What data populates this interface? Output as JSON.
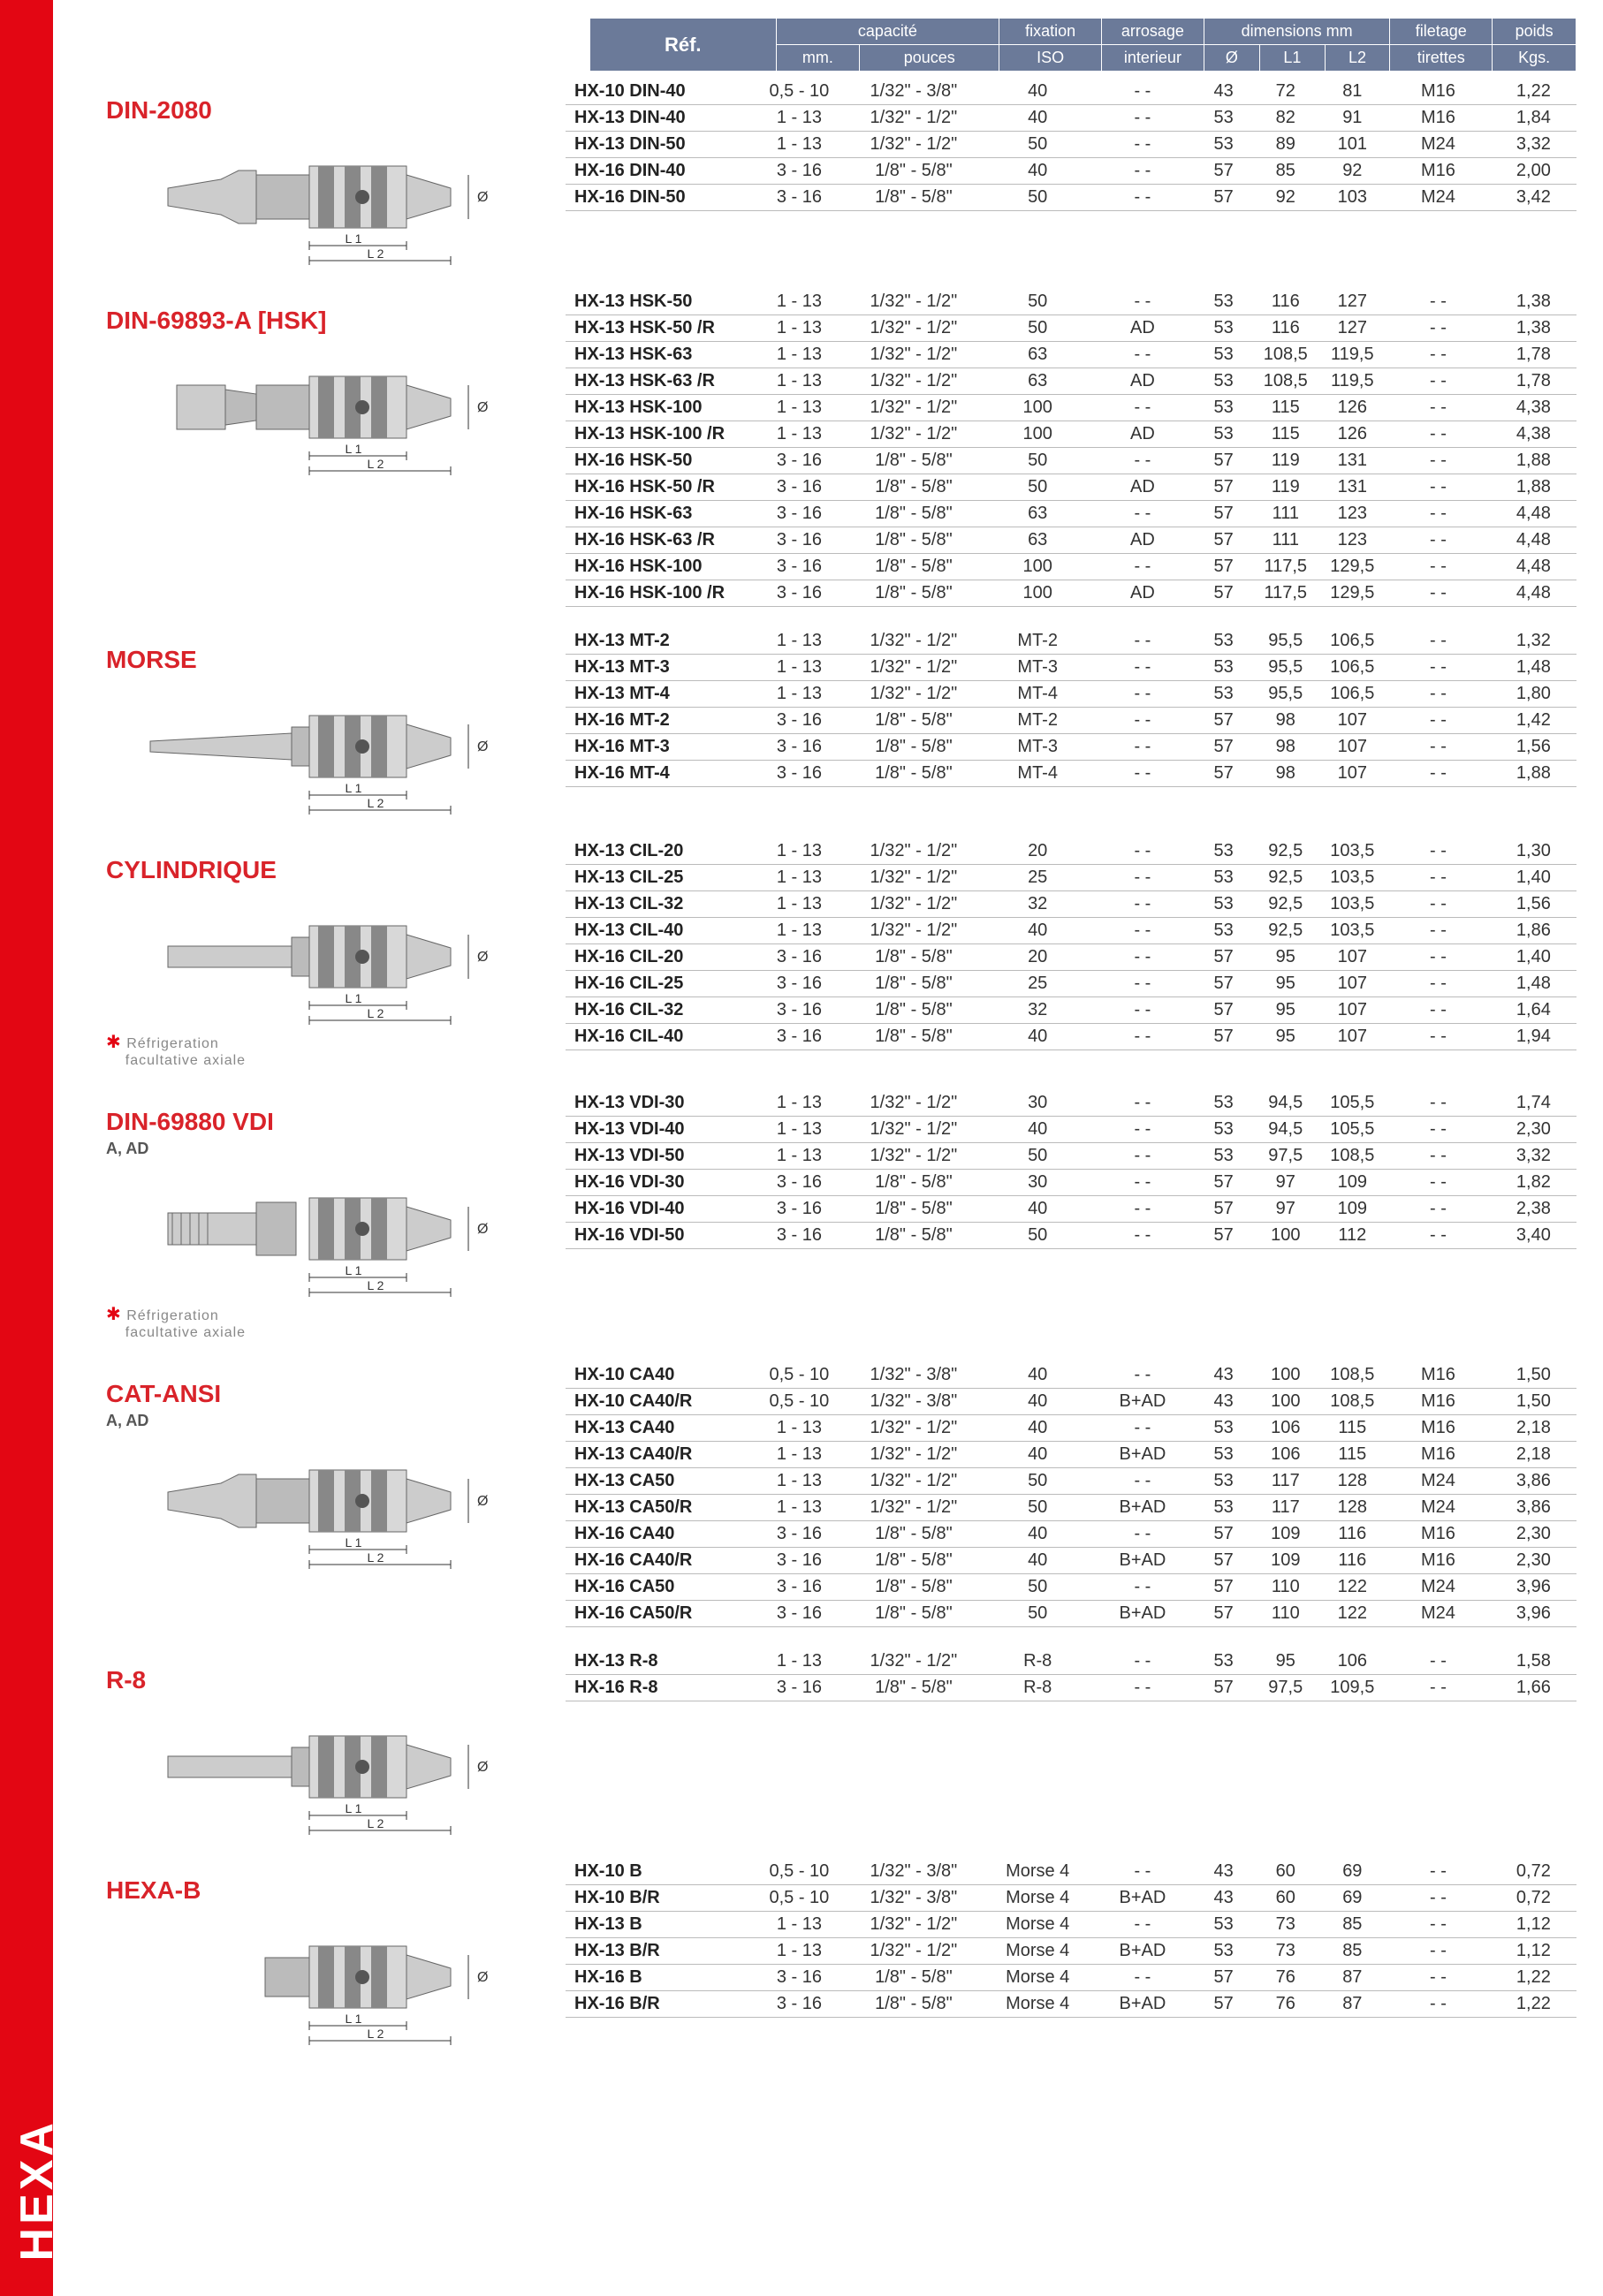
{
  "brand_vertical": "HEXA",
  "colors": {
    "accent": "#e30613",
    "header_bg": "#6b7a99",
    "title": "#d9232a"
  },
  "headers": {
    "ref": "Réf.",
    "cap": "capacité",
    "cap_mm": "mm.",
    "cap_in": "pouces",
    "iso": "fixation",
    "iso_sub": "ISO",
    "arr": "arrosage",
    "arr_sub": "interieur",
    "dim": "dimensions mm",
    "dim_d": "Ø",
    "dim_l1": "L1",
    "dim_l2": "L2",
    "fil": "filetage",
    "fil_sub": "tirettes",
    "kg": "poids",
    "kg_sub": "Kgs."
  },
  "sections": [
    {
      "title": "DIN-2080",
      "diagram": "taper",
      "rows": [
        {
          "ref": "HX-10 DIN-40",
          "mm": "0,5 - 10",
          "in": "1/32\" - 3/8\"",
          "iso": "40",
          "arr": "- -",
          "d": "43",
          "l1": "72",
          "l2": "81",
          "fil": "M16",
          "kg": "1,22",
          "sep": false
        },
        {
          "ref": "HX-13 DIN-40",
          "mm": "1 - 13",
          "in": "1/32\" - 1/2\"",
          "iso": "40",
          "arr": "- -",
          "d": "53",
          "l1": "82",
          "l2": "91",
          "fil": "M16",
          "kg": "1,84",
          "sep": true
        },
        {
          "ref": "HX-13 DIN-50",
          "mm": "1 - 13",
          "in": "1/32\" - 1/2\"",
          "iso": "50",
          "arr": "- -",
          "d": "53",
          "l1": "89",
          "l2": "101",
          "fil": "M24",
          "kg": "3,32",
          "sep": false
        },
        {
          "ref": "HX-16 DIN-40",
          "mm": "3 - 16",
          "in": "1/8\" - 5/8\"",
          "iso": "40",
          "arr": "- -",
          "d": "57",
          "l1": "85",
          "l2": "92",
          "fil": "M16",
          "kg": "2,00",
          "sep": true
        },
        {
          "ref": "HX-16 DIN-50",
          "mm": "3 - 16",
          "in": "1/8\" - 5/8\"",
          "iso": "50",
          "arr": "- -",
          "d": "57",
          "l1": "92",
          "l2": "103",
          "fil": "M24",
          "kg": "3,42",
          "sep": false
        }
      ]
    },
    {
      "title": "DIN-69893-A [HSK]",
      "diagram": "hsk",
      "rows": [
        {
          "ref": "HX-13 HSK-50",
          "mm": "1 - 13",
          "in": "1/32\" - 1/2\"",
          "iso": "50",
          "arr": "- -",
          "d": "53",
          "l1": "116",
          "l2": "127",
          "fil": "- -",
          "kg": "1,38",
          "sep": false
        },
        {
          "ref": "HX-13 HSK-50 /R",
          "mm": "1 - 13",
          "in": "1/32\" - 1/2\"",
          "iso": "50",
          "arr": "AD",
          "d": "53",
          "l1": "116",
          "l2": "127",
          "fil": "- -",
          "kg": "1,38",
          "sep": false
        },
        {
          "ref": "HX-13 HSK-63",
          "mm": "1 - 13",
          "in": "1/32\" - 1/2\"",
          "iso": "63",
          "arr": "- -",
          "d": "53",
          "l1": "108,5",
          "l2": "119,5",
          "fil": "- -",
          "kg": "1,78",
          "sep": false
        },
        {
          "ref": "HX-13 HSK-63 /R",
          "mm": "1 - 13",
          "in": "1/32\" - 1/2\"",
          "iso": "63",
          "arr": "AD",
          "d": "53",
          "l1": "108,5",
          "l2": "119,5",
          "fil": "- -",
          "kg": "1,78",
          "sep": false
        },
        {
          "ref": "HX-13 HSK-100",
          "mm": "1 - 13",
          "in": "1/32\" - 1/2\"",
          "iso": "100",
          "arr": "- -",
          "d": "53",
          "l1": "115",
          "l2": "126",
          "fil": "- -",
          "kg": "4,38",
          "sep": false
        },
        {
          "ref": "HX-13 HSK-100 /R",
          "mm": "1 - 13",
          "in": "1/32\" - 1/2\"",
          "iso": "100",
          "arr": "AD",
          "d": "53",
          "l1": "115",
          "l2": "126",
          "fil": "- -",
          "kg": "4,38",
          "sep": false
        },
        {
          "ref": "HX-16 HSK-50",
          "mm": "3 - 16",
          "in": "1/8\" - 5/8\"",
          "iso": "50",
          "arr": "- -",
          "d": "57",
          "l1": "119",
          "l2": "131",
          "fil": "- -",
          "kg": "1,88",
          "sep": true
        },
        {
          "ref": "HX-16 HSK-50 /R",
          "mm": "3 - 16",
          "in": "1/8\" - 5/8\"",
          "iso": "50",
          "arr": "AD",
          "d": "57",
          "l1": "119",
          "l2": "131",
          "fil": "- -",
          "kg": "1,88",
          "sep": false
        },
        {
          "ref": "HX-16 HSK-63",
          "mm": "3 - 16",
          "in": "1/8\" - 5/8\"",
          "iso": "63",
          "arr": "- -",
          "d": "57",
          "l1": "111",
          "l2": "123",
          "fil": "- -",
          "kg": "4,48",
          "sep": false
        },
        {
          "ref": "HX-16 HSK-63 /R",
          "mm": "3 - 16",
          "in": "1/8\" - 5/8\"",
          "iso": "63",
          "arr": "AD",
          "d": "57",
          "l1": "111",
          "l2": "123",
          "fil": "- -",
          "kg": "4,48",
          "sep": false
        },
        {
          "ref": "HX-16 HSK-100",
          "mm": "3 - 16",
          "in": "1/8\" - 5/8\"",
          "iso": "100",
          "arr": "- -",
          "d": "57",
          "l1": "117,5",
          "l2": "129,5",
          "fil": "- -",
          "kg": "4,48",
          "sep": false
        },
        {
          "ref": "HX-16 HSK-100 /R",
          "mm": "3 - 16",
          "in": "1/8\" - 5/8\"",
          "iso": "100",
          "arr": "AD",
          "d": "57",
          "l1": "117,5",
          "l2": "129,5",
          "fil": "- -",
          "kg": "4,48",
          "sep": false
        }
      ]
    },
    {
      "title": "MORSE",
      "diagram": "morse",
      "rows": [
        {
          "ref": "HX-13 MT-2",
          "mm": "1 - 13",
          "in": "1/32\" - 1/2\"",
          "iso": "MT-2",
          "arr": "- -",
          "d": "53",
          "l1": "95,5",
          "l2": "106,5",
          "fil": "- -",
          "kg": "1,32",
          "sep": false
        },
        {
          "ref": "HX-13 MT-3",
          "mm": "1 - 13",
          "in": "1/32\" - 1/2\"",
          "iso": "MT-3",
          "arr": "- -",
          "d": "53",
          "l1": "95,5",
          "l2": "106,5",
          "fil": "- -",
          "kg": "1,48",
          "sep": false
        },
        {
          "ref": "HX-13 MT-4",
          "mm": "1 - 13",
          "in": "1/32\" - 1/2\"",
          "iso": "MT-4",
          "arr": "- -",
          "d": "53",
          "l1": "95,5",
          "l2": "106,5",
          "fil": "- -",
          "kg": "1,80",
          "sep": false
        },
        {
          "ref": "HX-16 MT-2",
          "mm": "3 - 16",
          "in": "1/8\" - 5/8\"",
          "iso": "MT-2",
          "arr": "- -",
          "d": "57",
          "l1": "98",
          "l2": "107",
          "fil": "- -",
          "kg": "1,42",
          "sep": true
        },
        {
          "ref": "HX-16 MT-3",
          "mm": "3 - 16",
          "in": "1/8\" - 5/8\"",
          "iso": "MT-3",
          "arr": "- -",
          "d": "57",
          "l1": "98",
          "l2": "107",
          "fil": "- -",
          "kg": "1,56",
          "sep": false
        },
        {
          "ref": "HX-16 MT-4",
          "mm": "3 - 16",
          "in": "1/8\" - 5/8\"",
          "iso": "MT-4",
          "arr": "- -",
          "d": "57",
          "l1": "98",
          "l2": "107",
          "fil": "- -",
          "kg": "1,88",
          "sep": false
        }
      ]
    },
    {
      "title": "CYLINDRIQUE",
      "diagram": "cyl",
      "refrig": true,
      "rows": [
        {
          "ref": "HX-13 CIL-20",
          "mm": "1 - 13",
          "in": "1/32\" - 1/2\"",
          "iso": "20",
          "arr": "- -",
          "d": "53",
          "l1": "92,5",
          "l2": "103,5",
          "fil": "- -",
          "kg": "1,30",
          "sep": false
        },
        {
          "ref": "HX-13 CIL-25",
          "mm": "1 - 13",
          "in": "1/32\" - 1/2\"",
          "iso": "25",
          "arr": "- -",
          "d": "53",
          "l1": "92,5",
          "l2": "103,5",
          "fil": "- -",
          "kg": "1,40",
          "sep": false
        },
        {
          "ref": "HX-13 CIL-32",
          "mm": "1 - 13",
          "in": "1/32\" - 1/2\"",
          "iso": "32",
          "arr": "- -",
          "d": "53",
          "l1": "92,5",
          "l2": "103,5",
          "fil": "- -",
          "kg": "1,56",
          "sep": false
        },
        {
          "ref": "HX-13 CIL-40",
          "mm": "1 - 13",
          "in": "1/32\" - 1/2\"",
          "iso": "40",
          "arr": "- -",
          "d": "53",
          "l1": "92,5",
          "l2": "103,5",
          "fil": "- -",
          "kg": "1,86",
          "sep": false
        },
        {
          "ref": "HX-16 CIL-20",
          "mm": "3 - 16",
          "in": "1/8\" - 5/8\"",
          "iso": "20",
          "arr": "- -",
          "d": "57",
          "l1": "95",
          "l2": "107",
          "fil": "- -",
          "kg": "1,40",
          "sep": true
        },
        {
          "ref": "HX-16 CIL-25",
          "mm": "3 - 16",
          "in": "1/8\" - 5/8\"",
          "iso": "25",
          "arr": "- -",
          "d": "57",
          "l1": "95",
          "l2": "107",
          "fil": "- -",
          "kg": "1,48",
          "sep": false
        },
        {
          "ref": "HX-16 CIL-32",
          "mm": "3 - 16",
          "in": "1/8\" - 5/8\"",
          "iso": "32",
          "arr": "- -",
          "d": "57",
          "l1": "95",
          "l2": "107",
          "fil": "- -",
          "kg": "1,64",
          "sep": false
        },
        {
          "ref": "HX-16 CIL-40",
          "mm": "3 - 16",
          "in": "1/8\" - 5/8\"",
          "iso": "40",
          "arr": "- -",
          "d": "57",
          "l1": "95",
          "l2": "107",
          "fil": "- -",
          "kg": "1,94",
          "sep": false
        }
      ]
    },
    {
      "title": "DIN-69880 VDI",
      "sub": "A, AD",
      "diagram": "vdi",
      "refrig": true,
      "rows": [
        {
          "ref": "HX-13 VDI-30",
          "mm": "1 - 13",
          "in": "1/32\" - 1/2\"",
          "iso": "30",
          "arr": "- -",
          "d": "53",
          "l1": "94,5",
          "l2": "105,5",
          "fil": "- -",
          "kg": "1,74",
          "sep": false
        },
        {
          "ref": "HX-13 VDI-40",
          "mm": "1 - 13",
          "in": "1/32\" - 1/2\"",
          "iso": "40",
          "arr": "- -",
          "d": "53",
          "l1": "94,5",
          "l2": "105,5",
          "fil": "- -",
          "kg": "2,30",
          "sep": false
        },
        {
          "ref": "HX-13 VDI-50",
          "mm": "1 - 13",
          "in": "1/32\" - 1/2\"",
          "iso": "50",
          "arr": "- -",
          "d": "53",
          "l1": "97,5",
          "l2": "108,5",
          "fil": "- -",
          "kg": "3,32",
          "sep": false
        },
        {
          "ref": "HX-16 VDI-30",
          "mm": "3 - 16",
          "in": "1/8\" - 5/8\"",
          "iso": "30",
          "arr": "- -",
          "d": "57",
          "l1": "97",
          "l2": "109",
          "fil": "- -",
          "kg": "1,82",
          "sep": true
        },
        {
          "ref": "HX-16 VDI-40",
          "mm": "3 - 16",
          "in": "1/8\" - 5/8\"",
          "iso": "40",
          "arr": "- -",
          "d": "57",
          "l1": "97",
          "l2": "109",
          "fil": "- -",
          "kg": "2,38",
          "sep": false
        },
        {
          "ref": "HX-16 VDI-50",
          "mm": "3 - 16",
          "in": "1/8\" - 5/8\"",
          "iso": "50",
          "arr": "- -",
          "d": "57",
          "l1": "100",
          "l2": "112",
          "fil": "- -",
          "kg": "3,40",
          "sep": false
        }
      ]
    },
    {
      "title": "CAT-ANSI",
      "sub": "A, AD",
      "diagram": "taper",
      "rows": [
        {
          "ref": "HX-10 CA40",
          "mm": "0,5 - 10",
          "in": "1/32\" - 3/8\"",
          "iso": "40",
          "arr": "- -",
          "d": "43",
          "l1": "100",
          "l2": "108,5",
          "fil": "M16",
          "kg": "1,50",
          "sep": false
        },
        {
          "ref": "HX-10 CA40/R",
          "mm": "0,5 - 10",
          "in": "1/32\" - 3/8\"",
          "iso": "40",
          "arr": "B+AD",
          "d": "43",
          "l1": "100",
          "l2": "108,5",
          "fil": "M16",
          "kg": "1,50",
          "sep": false
        },
        {
          "ref": "HX-13 CA40",
          "mm": "1 - 13",
          "in": "1/32\" - 1/2\"",
          "iso": "40",
          "arr": "- -",
          "d": "53",
          "l1": "106",
          "l2": "115",
          "fil": "M16",
          "kg": "2,18",
          "sep": true
        },
        {
          "ref": "HX-13 CA40/R",
          "mm": "1 - 13",
          "in": "1/32\" - 1/2\"",
          "iso": "40",
          "arr": "B+AD",
          "d": "53",
          "l1": "106",
          "l2": "115",
          "fil": "M16",
          "kg": "2,18",
          "sep": false
        },
        {
          "ref": "HX-13 CA50",
          "mm": "1 - 13",
          "in": "1/32\" - 1/2\"",
          "iso": "50",
          "arr": "- -",
          "d": "53",
          "l1": "117",
          "l2": "128",
          "fil": "M24",
          "kg": "3,86",
          "sep": false
        },
        {
          "ref": "HX-13 CA50/R",
          "mm": "1 - 13",
          "in": "1/32\" - 1/2\"",
          "iso": "50",
          "arr": "B+AD",
          "d": "53",
          "l1": "117",
          "l2": "128",
          "fil": "M24",
          "kg": "3,86",
          "sep": false
        },
        {
          "ref": "HX-16 CA40",
          "mm": "3 - 16",
          "in": "1/8\" - 5/8\"",
          "iso": "40",
          "arr": "- -",
          "d": "57",
          "l1": "109",
          "l2": "116",
          "fil": "M16",
          "kg": "2,30",
          "sep": true
        },
        {
          "ref": "HX-16 CA40/R",
          "mm": "3 - 16",
          "in": "1/8\" - 5/8\"",
          "iso": "40",
          "arr": "B+AD",
          "d": "57",
          "l1": "109",
          "l2": "116",
          "fil": "M16",
          "kg": "2,30",
          "sep": false
        },
        {
          "ref": "HX-16 CA50",
          "mm": "3 - 16",
          "in": "1/8\" - 5/8\"",
          "iso": "50",
          "arr": "- -",
          "d": "57",
          "l1": "110",
          "l2": "122",
          "fil": "M24",
          "kg": "3,96",
          "sep": false
        },
        {
          "ref": "HX-16 CA50/R",
          "mm": "3 - 16",
          "in": "1/8\" - 5/8\"",
          "iso": "50",
          "arr": "B+AD",
          "d": "57",
          "l1": "110",
          "l2": "122",
          "fil": "M24",
          "kg": "3,96",
          "sep": false
        }
      ]
    },
    {
      "title": "R-8",
      "diagram": "cyl",
      "rows": [
        {
          "ref": "HX-13 R-8",
          "mm": "1 - 13",
          "in": "1/32\" - 1/2\"",
          "iso": "R-8",
          "arr": "- -",
          "d": "53",
          "l1": "95",
          "l2": "106",
          "fil": "- -",
          "kg": "1,58",
          "sep": false
        },
        {
          "ref": "HX-16 R-8",
          "mm": "3 - 16",
          "in": "1/8\" - 5/8\"",
          "iso": "R-8",
          "arr": "- -",
          "d": "57",
          "l1": "97,5",
          "l2": "109,5",
          "fil": "- -",
          "kg": "1,66",
          "sep": true
        }
      ]
    },
    {
      "title": "HEXA-B",
      "diagram": "hexab",
      "rows": [
        {
          "ref": "HX-10 B",
          "mm": "0,5 - 10",
          "in": "1/32\" - 3/8\"",
          "iso": "Morse 4",
          "arr": "- -",
          "d": "43",
          "l1": "60",
          "l2": "69",
          "fil": "- -",
          "kg": "0,72",
          "sep": false
        },
        {
          "ref": "HX-10 B/R",
          "mm": "0,5 - 10",
          "in": "1/32\" - 3/8\"",
          "iso": "Morse 4",
          "arr": "B+AD",
          "d": "43",
          "l1": "60",
          "l2": "69",
          "fil": "- -",
          "kg": "0,72",
          "sep": false
        },
        {
          "ref": "HX-13 B",
          "mm": "1 - 13",
          "in": "1/32\" - 1/2\"",
          "iso": "Morse 4",
          "arr": "- -",
          "d": "53",
          "l1": "73",
          "l2": "85",
          "fil": "- -",
          "kg": "1,12",
          "sep": true
        },
        {
          "ref": "HX-13 B/R",
          "mm": "1 - 13",
          "in": "1/32\" - 1/2\"",
          "iso": "Morse 4",
          "arr": "B+AD",
          "d": "53",
          "l1": "73",
          "l2": "85",
          "fil": "- -",
          "kg": "1,12",
          "sep": false
        },
        {
          "ref": "HX-16 B",
          "mm": "3 - 16",
          "in": "1/8\" - 5/8\"",
          "iso": "Morse 4",
          "arr": "- -",
          "d": "57",
          "l1": "76",
          "l2": "87",
          "fil": "- -",
          "kg": "1,22",
          "sep": true
        },
        {
          "ref": "HX-16 B/R",
          "mm": "3 - 16",
          "in": "1/8\" - 5/8\"",
          "iso": "Morse 4",
          "arr": "B+AD",
          "d": "57",
          "l1": "76",
          "l2": "87",
          "fil": "- -",
          "kg": "1,22",
          "sep": false
        }
      ]
    }
  ],
  "refrig_label1": "Réfrigeration",
  "refrig_label2": "facultative axiale",
  "dim_labels": {
    "l1": "L 1",
    "l2": "L 2",
    "d": "Ø"
  }
}
